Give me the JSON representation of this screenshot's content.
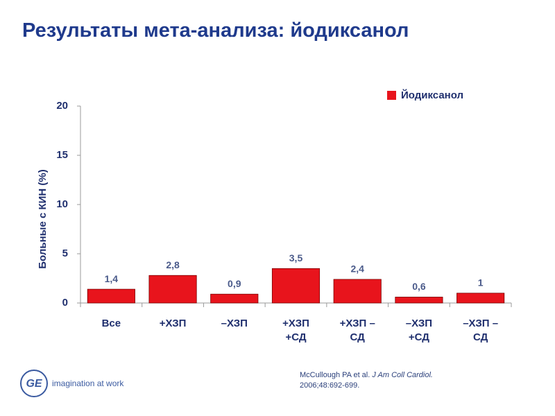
{
  "title": "Результаты мета-анализа: йодиксанол",
  "chart_data": {
    "type": "bar",
    "y_label": "Больные с КИН (%)",
    "categories": [
      "Все",
      "+ХЗП",
      "–ХЗП",
      "+ХЗП +СД",
      "+ХЗП –СД",
      "–ХЗП +СД",
      "–ХЗП –СД"
    ],
    "series": [
      {
        "name": "Йодиксанол",
        "color": "#e8141c",
        "values": [
          1.4,
          2.8,
          0.9,
          3.5,
          2.4,
          0.6,
          1
        ],
        "value_labels": [
          "1,4",
          "2,8",
          "0,9",
          "3,5",
          "2,4",
          "0,6",
          "1"
        ]
      }
    ],
    "ylim": [
      0,
      20
    ],
    "yticks": [
      0,
      5,
      10,
      15,
      20
    ],
    "legend": "top-right"
  },
  "footer": {
    "logo_mark": "GE",
    "logo_text": "imagination at work",
    "citation": {
      "authors": "McCullough PA et al.",
      "journal": "J Am Coll Cardiol.",
      "details": "2006;48:692-699."
    }
  }
}
